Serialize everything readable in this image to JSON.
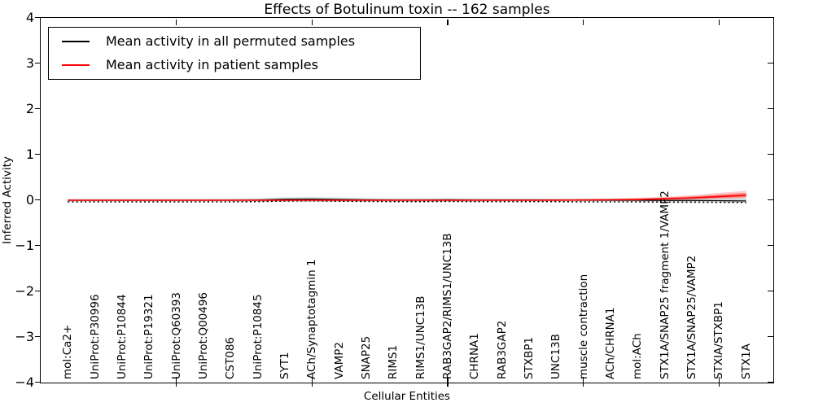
{
  "chart_data": {
    "type": "line",
    "title": "Effects of Botulinum toxin -- 162 samples",
    "xlabel": "Cellular Entities",
    "ylabel": "Inferred Activity",
    "ylim": [
      -4,
      4
    ],
    "xlim": [
      -1,
      26
    ],
    "yticks": [
      4,
      3,
      2,
      1,
      0,
      -1,
      -2,
      -3,
      -4
    ],
    "xtick_marker_indices": [
      4,
      9,
      14,
      19,
      24
    ],
    "grid": false,
    "legend_position": "upper left",
    "categories": [
      "mol:Ca2+",
      "UniProt:P30996",
      "UniProt:P10844",
      "UniProt:P19321",
      "UniProt:Q60393",
      "UniProt:Q00496",
      "CST086",
      "UniProt:P10845",
      "SYT1",
      "ACh/Synaptotagmin 1",
      "VAMP2",
      "SNAP25",
      "RIMS1",
      "RIMS1/UNC13B",
      "RAB3GAP2/RIMS1/UNC13B",
      "CHRNA1",
      "RAB3GAP2",
      "STXBP1",
      "UNC13B",
      "muscle contraction",
      "ACh/CHRNA1",
      "mol:ACh",
      "STX1A/SNAP25 fragment 1/VAMP2",
      "STX1A/SNAP25/VAMP2",
      "STXIA/STXBP1",
      "STX1A"
    ],
    "series": [
      {
        "name": "Mean activity in all permuted samples",
        "color": "#000000",
        "band_color": "rgba(0,0,0,0.15)",
        "values": [
          0,
          0,
          0,
          0,
          0,
          0,
          0,
          0.005,
          0.02,
          0.025,
          0.015,
          0.01,
          0.005,
          0.005,
          0.01,
          0.005,
          0.005,
          0.005,
          0.005,
          0,
          0,
          0,
          -0.005,
          -0.005,
          -0.01,
          -0.015
        ],
        "band_upper": [
          0.03,
          0.03,
          0.03,
          0.03,
          0.03,
          0.03,
          0.035,
          0.045,
          0.065,
          0.07,
          0.06,
          0.05,
          0.045,
          0.045,
          0.05,
          0.045,
          0.04,
          0.04,
          0.04,
          0.04,
          0.04,
          0.045,
          0.05,
          0.055,
          0.06,
          0.065
        ],
        "band_lower": [
          -0.03,
          -0.03,
          -0.03,
          -0.03,
          -0.03,
          -0.03,
          -0.03,
          -0.035,
          -0.04,
          -0.04,
          -0.04,
          -0.035,
          -0.035,
          -0.035,
          -0.035,
          -0.035,
          -0.03,
          -0.03,
          -0.03,
          -0.03,
          -0.03,
          -0.035,
          -0.04,
          -0.045,
          -0.05,
          -0.055
        ]
      },
      {
        "name": "Mean activity in patient samples",
        "color": "#ff0000",
        "band_color": "rgba(255,0,0,0.2)",
        "values": [
          0,
          0,
          0,
          0,
          0,
          0,
          0,
          0,
          0,
          0,
          0,
          0,
          0,
          0,
          0,
          0,
          0,
          0,
          0.002,
          0.005,
          0.01,
          0.015,
          0.03,
          0.05,
          0.08,
          0.105
        ],
        "band_upper": [
          0.01,
          0.01,
          0.01,
          0.01,
          0.01,
          0.01,
          0.01,
          0.01,
          0.01,
          0.01,
          0.01,
          0.01,
          0.01,
          0.01,
          0.01,
          0.01,
          0.01,
          0.012,
          0.015,
          0.02,
          0.03,
          0.05,
          0.08,
          0.11,
          0.16,
          0.21
        ],
        "band_lower": [
          -0.01,
          -0.01,
          -0.01,
          -0.01,
          -0.01,
          -0.01,
          -0.01,
          -0.01,
          -0.01,
          -0.01,
          -0.01,
          -0.01,
          -0.01,
          -0.01,
          -0.01,
          -0.01,
          -0.01,
          -0.01,
          -0.008,
          -0.005,
          -0.003,
          0,
          0.005,
          0.015,
          0.03,
          0.05
        ]
      }
    ]
  }
}
